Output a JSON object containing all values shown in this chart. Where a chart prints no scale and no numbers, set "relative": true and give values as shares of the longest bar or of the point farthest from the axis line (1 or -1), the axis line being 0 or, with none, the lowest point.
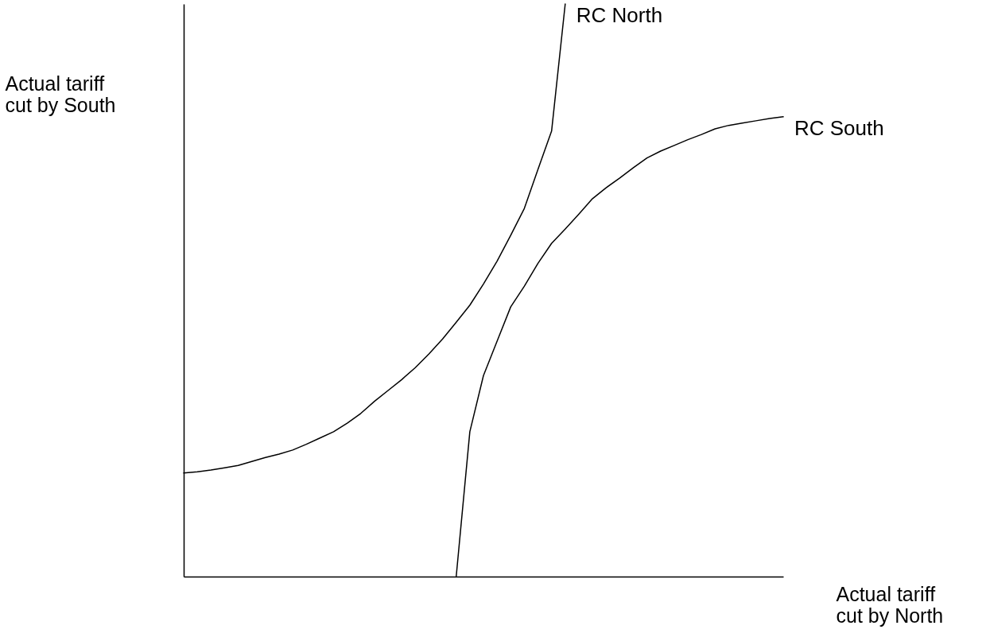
{
  "chart_data": {
    "type": "line",
    "relative": true,
    "xlabel": "Actual tariff cut by North",
    "ylabel": "Actual tariff cut by South",
    "categories": [
      null,
      null,
      null,
      null,
      null,
      null,
      null,
      null,
      null,
      null,
      null,
      null,
      null,
      null,
      null,
      null,
      null,
      null,
      null,
      null,
      null,
      null,
      null,
      null,
      null,
      null,
      null,
      null,
      null,
      null,
      null,
      null,
      null,
      null,
      null,
      null,
      null,
      null,
      null,
      null,
      null,
      null,
      null,
      null,
      null
    ],
    "series": [
      {
        "name": "RC North",
        "color": "#000000",
        "values": [
          0.181,
          0.183,
          0.186,
          0.19,
          0.194,
          0.201,
          0.208,
          0.214,
          0.221,
          0.231,
          0.242,
          0.253,
          0.268,
          0.285,
          0.306,
          0.325,
          0.344,
          0.365,
          0.389,
          0.415,
          0.444,
          0.474,
          0.511,
          0.551,
          0.596,
          0.643,
          0.711,
          0.778,
          1,
          null,
          null,
          null,
          null,
          null,
          null,
          null,
          null,
          null,
          null,
          null,
          null,
          null,
          null,
          null,
          null
        ]
      },
      {
        "name": "RC South",
        "color": "#000000",
        "values": [
          null,
          null,
          null,
          null,
          null,
          null,
          null,
          null,
          null,
          null,
          null,
          null,
          null,
          null,
          null,
          null,
          null,
          null,
          null,
          null,
          0,
          0.253,
          0.351,
          0.411,
          0.471,
          0.507,
          0.547,
          0.582,
          0.607,
          0.633,
          0.66,
          0.679,
          0.696,
          0.714,
          0.731,
          0.743,
          0.753,
          0.763,
          0.772,
          0.782,
          0.788,
          0.792,
          0.796,
          0.8,
          0.803
        ]
      }
    ]
  }
}
